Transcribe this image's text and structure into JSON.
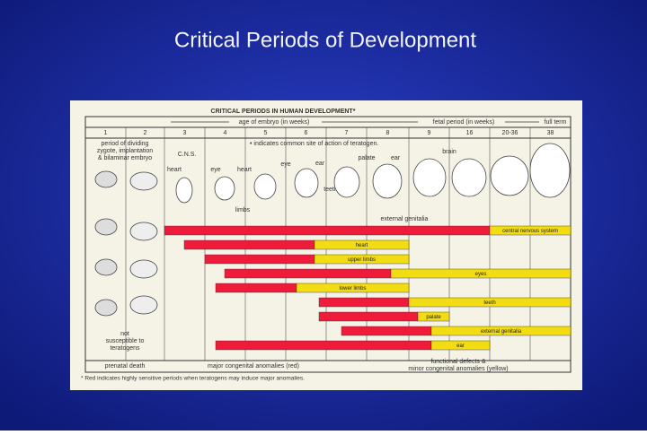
{
  "title": "Critical Periods of Development",
  "figure": {
    "heading": "CRITICAL PERIODS IN HUMAN DEVELOPMENT*",
    "embryo_age_label": "age of embryo (in weeks)",
    "fetal_period_label": "fetal period (in weeks)",
    "full_term_label": "full term",
    "weeks": [
      "1",
      "2",
      "3",
      "4",
      "5",
      "6",
      "7",
      "8",
      "9",
      "16",
      "20-36",
      "38"
    ],
    "early_note": [
      "period of dividing",
      "zygote, implantation",
      "& bilaminar embryo"
    ],
    "teratogen_note": "• indicates common site of action of teratogen.",
    "sites": [
      "C.N.S.",
      "heart",
      "eye",
      "heart",
      "eye",
      "ear",
      "palate",
      "ear",
      "brain",
      "limbs",
      "teeth",
      "external genitalia"
    ],
    "not_susceptible": [
      "not",
      "susceptible to",
      "teratogens"
    ],
    "bars": [
      {
        "label": "central nervous system"
      },
      {
        "label": "heart"
      },
      {
        "label": "upper limbs"
      },
      {
        "label": "eyes"
      },
      {
        "label": "lower limbs"
      },
      {
        "label": "teeth"
      },
      {
        "label": "palate"
      },
      {
        "label": "external genitalia"
      },
      {
        "label": "ear"
      }
    ],
    "outcomes": [
      "prenatal death",
      "major congenital anomalies (red)",
      "functional defects &",
      "minor congenital anomalies (yellow)"
    ],
    "footnote": "* Red indicates highly sensitive periods when teratogens may induce major anomalies."
  }
}
